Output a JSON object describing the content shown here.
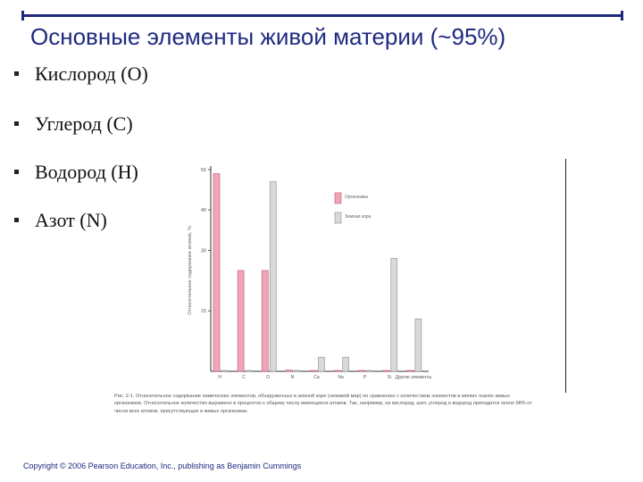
{
  "slide": {
    "title": "Основные элементы живой материи (~95%)",
    "bullets": [
      "Кислород (O)",
      "Углерод (C)",
      "Водород (H)",
      "Азот (N)"
    ],
    "copyright": "Copyright © 2006 Pearson Education, Inc., publishing as Benjamin Cummings",
    "colors": {
      "accent": "#1f2a80",
      "organisms": "#f0a6b8",
      "earth_crust": "#d9d9d9"
    }
  },
  "figure": {
    "caption": "Рис. 2-1. Относительное содержание химических элементов, обнаруженных в земной коре (неживой мир) по сравнению с количеством элементов в мягких тканях живых организмов. Относительное количество выражено в процентах к общему числу имеющихся атомов. Так, например, на кислород, азот, углерод и водород приходится около 98% от числа всех атомов, присутствующих в живых организмах."
  },
  "chart_data": {
    "type": "bar",
    "categories": [
      "H",
      "C",
      "O",
      "N",
      "Ca",
      "Na",
      "P",
      "Si",
      "Другие элементы"
    ],
    "series": [
      {
        "name": "Организмы",
        "values": [
          49,
          25,
          25,
          0.3,
          0.2,
          0.1,
          0.2,
          0.1,
          0.2
        ]
      },
      {
        "name": "Земная кора",
        "values": [
          0.2,
          0.2,
          47,
          0.1,
          3.5,
          3.5,
          0.1,
          28,
          13
        ]
      }
    ],
    "ylabel": "Относительное содержание атомов, %",
    "yticks": [
      15,
      30,
      40,
      50
    ],
    "ylim": [
      0,
      50
    ],
    "legend": "top-right",
    "grid": false
  }
}
